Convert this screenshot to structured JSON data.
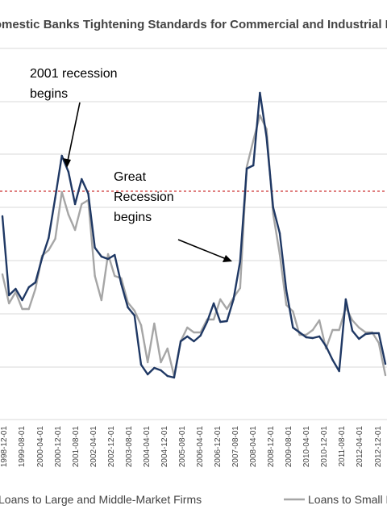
{
  "chart_data": {
    "type": "line",
    "title": "Domestic Banks Tightening Standards for Commercial and Industrial Loans",
    "x": [
      "1998-12-01",
      "1999-01-01",
      "1999-02-01",
      "1999-03-01",
      "1999-04-01",
      "1999-05-01",
      "1999-06-01",
      "1999-07-01",
      "1999-08-01",
      "1999-09-01",
      "1999-10-01",
      "1999-11-01",
      "1999-12-01",
      "2000-01-01",
      "2000-02-01",
      "2000-03-01",
      "2000-04-01",
      "2000-05-01",
      "2000-06-01",
      "2000-07-01",
      "2000-08-01",
      "2000-09-01",
      "2000-10-01",
      "2000-11-01",
      "2000-12-01",
      "2001-01-01",
      "2001-02-01",
      "2001-03-01",
      "2001-04-01",
      "2001-05-01",
      "2001-06-01",
      "2001-07-01",
      "2001-08-01",
      "2001-09-01",
      "2001-10-01",
      "2001-11-01",
      "2001-12-01",
      "2002-01-01",
      "2002-02-01",
      "2002-03-01",
      "2002-04-01",
      "2002-05-01",
      "2002-06-01",
      "2002-07-01",
      "2002-08-01",
      "2002-09-01",
      "2002-10-01",
      "2002-11-01",
      "2002-12-01",
      "2003-01-01",
      "2003-02-01",
      "2003-03-01",
      "2003-04-01",
      "2003-05-01",
      "2003-06-01",
      "2003-07-01",
      "2003-08-01",
      "2003-09-01",
      "2003-10-01",
      "2003-11-01",
      "2003-12-01",
      "2004-01-01",
      "2004-02-01",
      "2004-03-01",
      "2004-04-01",
      "2004-05-01",
      "2004-06-01",
      "2004-07-01",
      "2004-08-01",
      "2004-09-01",
      "2004-10-01",
      "2004-11-01",
      "2004-12-01",
      "2005-01-01",
      "2005-02-01",
      "2005-03-01",
      "2005-04-01",
      "2005-05-01",
      "2005-06-01",
      "2005-07-01",
      "2005-08-01",
      "2005-09-01",
      "2005-10-01",
      "2005-11-01",
      "2005-12-01",
      "2006-01-01",
      "2006-02-01",
      "2006-03-01",
      "2006-04-01",
      "2006-05-01",
      "2006-06-01",
      "2006-07-01",
      "2006-08-01",
      "2006-09-01",
      "2006-10-01",
      "2006-11-01",
      "2006-12-01",
      "2007-01-01",
      "2007-02-01",
      "2007-03-01",
      "2007-04-01",
      "2007-05-01",
      "2007-06-01",
      "2007-07-01",
      "2007-08-01",
      "2007-09-01",
      "2007-10-01",
      "2007-11-01",
      "2007-12-01",
      "2008-01-01",
      "2008-02-01",
      "2008-03-01",
      "2008-04-01",
      "2008-05-01",
      "2008-06-01",
      "2008-07-01",
      "2008-08-01",
      "2008-09-01",
      "2008-10-01",
      "2008-11-01",
      "2008-12-01",
      "2009-01-01",
      "2009-02-01",
      "2009-03-01",
      "2009-04-01",
      "2009-05-01",
      "2009-06-01",
      "2009-07-01",
      "2009-08-01",
      "2009-09-01",
      "2009-10-01",
      "2009-11-01",
      "2009-12-01",
      "2010-01-01",
      "2010-02-01",
      "2010-03-01",
      "2010-04-01",
      "2010-05-01",
      "2010-06-01",
      "2010-07-01",
      "2010-08-01",
      "2010-09-01",
      "2010-10-01",
      "2010-11-01",
      "2010-12-01",
      "2011-01-01",
      "2011-02-01",
      "2011-03-01",
      "2011-04-01",
      "2011-05-01",
      "2011-06-01",
      "2011-07-01",
      "2011-08-01",
      "2011-09-01",
      "2011-10-01",
      "2011-11-01",
      "2011-12-01",
      "2012-01-01",
      "2012-02-01",
      "2012-03-01",
      "2012-04-01",
      "2012-05-01",
      "2012-06-01",
      "2012-07-01",
      "2012-08-01",
      "2012-09-01",
      "2012-10-01",
      "2012-11-01",
      "2012-12-01",
      "2013-01-01",
      "2013-02-01",
      "2013-03-01",
      "2013-04-01"
    ],
    "tick_labels": [
      "1998-12-01",
      "1999-08-01",
      "2000-04-01",
      "2000-12-01",
      "2001-08-01",
      "2002-04-01",
      "2002-12-01",
      "2003-08-01",
      "2004-04-01",
      "2004-12-01",
      "2005-08-01",
      "2006-04-01",
      "2006-12-01",
      "2007-08-01",
      "2008-04-01",
      "2008-12-01",
      "2009-08-01",
      "2010-04-01",
      "2010-12-01",
      "2011-08-01",
      "2012-04-01",
      "2012-12-01"
    ],
    "series": [
      {
        "name": "Loans to Large and Middle-Market Firms",
        "color": "#1f3864",
        "points": [
          [
            0,
            0
          ],
          [
            3,
            0
          ],
          [
            4,
            0
          ],
          [
            5,
            0
          ],
          [
            8,
            0
          ]
        ]
      },
      {
        "name": "Loans to Small Firms",
        "color": "#a6a6a6",
        "points": []
      }
    ],
    "annotations": [
      {
        "text_lines": [
          "2001 recession",
          "begins"
        ]
      },
      {
        "text_lines": [
          "Great",
          "Recession",
          "begins"
        ]
      }
    ],
    "reference_line": {
      "color": "#c00000",
      "style": "dashed"
    },
    "grid": true,
    "legend_position": "bottom"
  }
}
